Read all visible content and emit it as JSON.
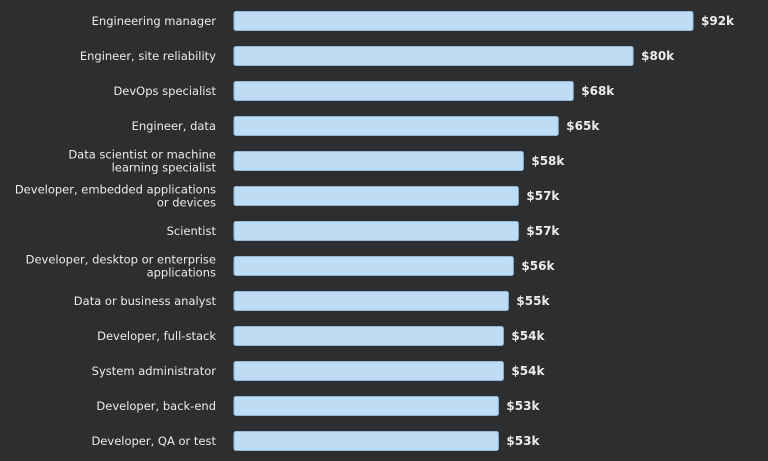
{
  "chart_data": {
    "type": "bar",
    "orientation": "horizontal",
    "categories": [
      "Engineering manager",
      "Engineer, site reliability",
      "DevOps specialist",
      "Engineer, data",
      "Data scientist or machine learning specialist",
      "Developer, embedded applications or devices",
      "Scientist",
      "Developer, desktop or enterprise applications",
      "Data or business analyst",
      "Developer, full-stack",
      "System administrator",
      "Developer, back-end",
      "Developer, QA or test"
    ],
    "values": [
      92,
      80,
      68,
      65,
      58,
      57,
      57,
      56,
      55,
      54,
      54,
      53,
      53
    ],
    "value_labels": [
      "$92k",
      "$80k",
      "$68k",
      "$65k",
      "$58k",
      "$57k",
      "$57k",
      "$56k",
      "$55k",
      "$54k",
      "$54k",
      "$53k",
      "$53k"
    ],
    "unit": "k USD",
    "title": "",
    "xlabel": "",
    "ylabel": "",
    "xlim": [
      0,
      92
    ],
    "grid": false,
    "legend": "none",
    "colors": {
      "background": "#2d2e30",
      "bar_fill": "#bfdcf5",
      "bar_stroke": "#8fb8dc",
      "text": "#ececec"
    }
  }
}
